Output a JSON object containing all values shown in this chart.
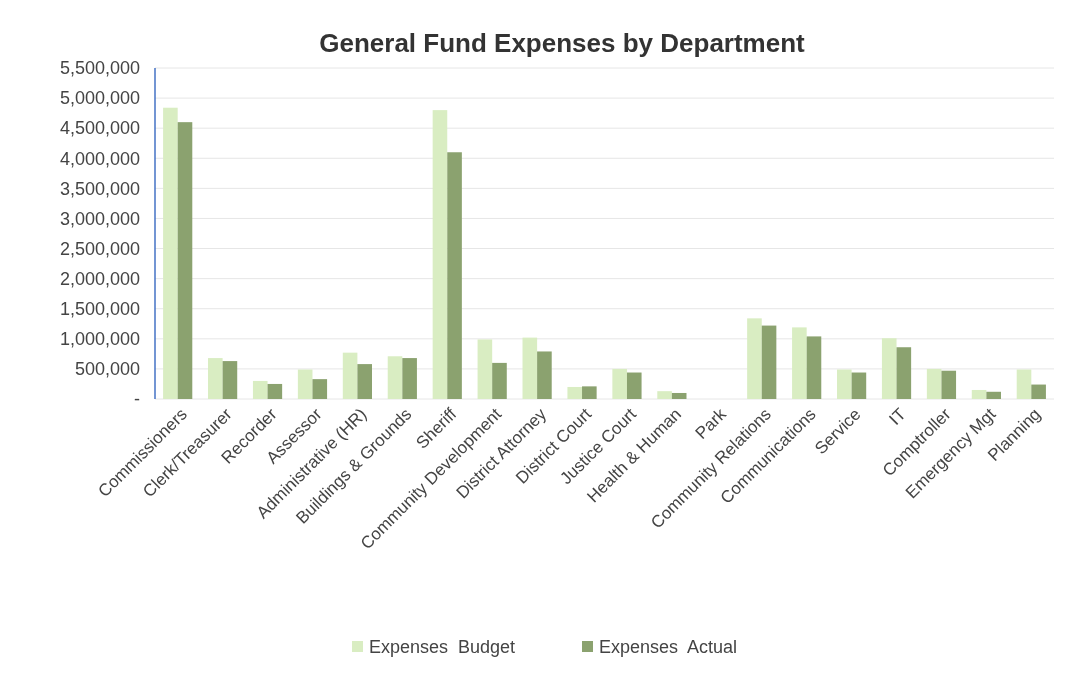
{
  "chart_data": {
    "type": "bar",
    "title": "General Fund Expenses by Department",
    "categories": [
      "Commissioners",
      "Clerk/Treasurer",
      "Recorder",
      "Assessor",
      "Administrative (HR)",
      "Buildings & Grounds",
      "Sheriff",
      "Community Development",
      "District Attorney",
      "District Court",
      "Justice Court",
      "Health & Human",
      "Park",
      "Community Relations",
      "Communications",
      "Service",
      "IT",
      "Comptroller",
      "Emergency Mgt",
      "Planning"
    ],
    "series": [
      {
        "name": "Expenses  Budget",
        "color": "#d9edc2",
        "values": [
          4840000,
          680000,
          300000,
          490000,
          770000,
          710000,
          4800000,
          990000,
          1020000,
          200000,
          500000,
          130000,
          0,
          1340000,
          1190000,
          490000,
          1010000,
          500000,
          150000,
          490000
        ]
      },
      {
        "name": "Expenses  Actual",
        "color": "#8ba26f",
        "values": [
          4600000,
          630000,
          250000,
          330000,
          580000,
          680000,
          4100000,
          600000,
          790000,
          210000,
          440000,
          100000,
          0,
          1220000,
          1040000,
          440000,
          860000,
          470000,
          120000,
          240000
        ]
      }
    ],
    "ylim": [
      0,
      5500000
    ],
    "yticks": [
      {
        "value": 0,
        "label": "-"
      },
      {
        "value": 500000,
        "label": "500,000"
      },
      {
        "value": 1000000,
        "label": "1,000,000"
      },
      {
        "value": 1500000,
        "label": "1,500,000"
      },
      {
        "value": 2000000,
        "label": "2,000,000"
      },
      {
        "value": 2500000,
        "label": "2,500,000"
      },
      {
        "value": 3000000,
        "label": "3,000,000"
      },
      {
        "value": 3500000,
        "label": "3,500,000"
      },
      {
        "value": 4000000,
        "label": "4,000,000"
      },
      {
        "value": 4500000,
        "label": "4,500,000"
      },
      {
        "value": 5000000,
        "label": "5,000,000"
      },
      {
        "value": 5500000,
        "label": "5,500,000"
      }
    ],
    "grid": "y",
    "legend": "bottom"
  }
}
